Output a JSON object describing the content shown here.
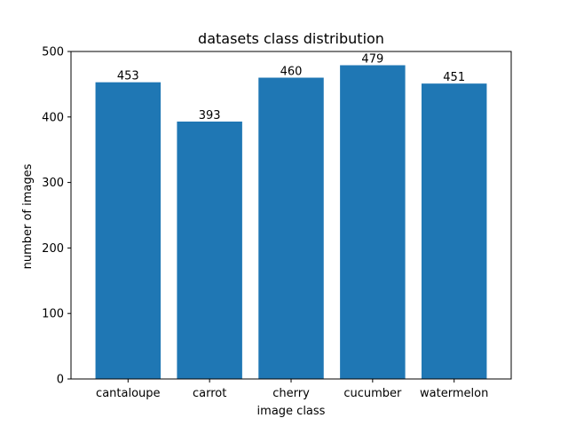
{
  "chart_data": {
    "type": "bar",
    "title": "datasets class distribution",
    "xlabel": "image class",
    "ylabel": "number of images",
    "categories": [
      "cantaloupe",
      "carrot",
      "cherry",
      "cucumber",
      "watermelon"
    ],
    "values": [
      453,
      393,
      460,
      479,
      451
    ],
    "ylim": [
      0,
      500
    ],
    "yticks": [
      0,
      100,
      200,
      300,
      400,
      500
    ],
    "grid": false,
    "bar_color": "#1f77b4",
    "show_data_labels": true
  }
}
